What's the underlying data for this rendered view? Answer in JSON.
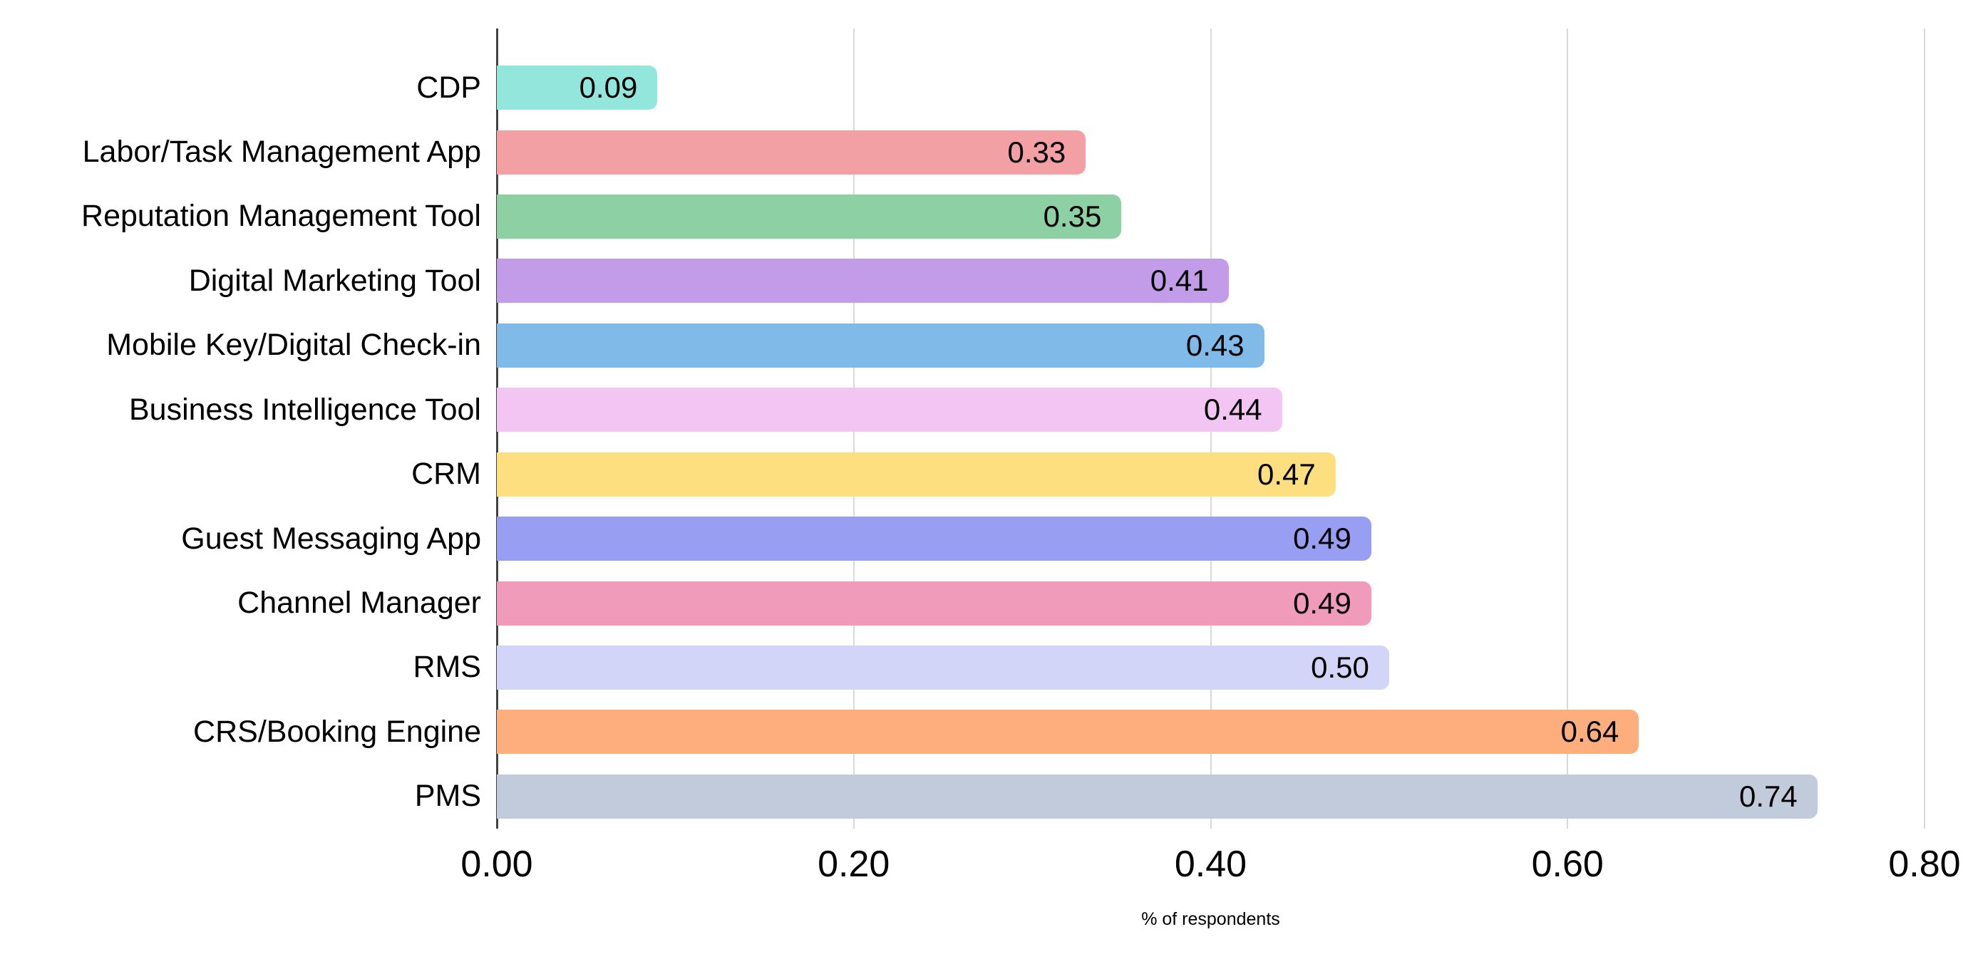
{
  "chart_data": {
    "type": "bar",
    "orientation": "horizontal",
    "title": "",
    "xlabel": "% of respondents",
    "ylabel": "",
    "xlim": [
      0,
      0.8
    ],
    "grid": true,
    "legend": false,
    "x_ticks": [
      {
        "value": 0.0,
        "label": "0.00"
      },
      {
        "value": 0.2,
        "label": "0.20"
      },
      {
        "value": 0.4,
        "label": "0.40"
      },
      {
        "value": 0.6,
        "label": "0.60"
      },
      {
        "value": 0.8,
        "label": "0.80"
      }
    ],
    "bars": [
      {
        "category": "CDP",
        "value": 0.09,
        "label": "0.09",
        "color": "#93E6DC"
      },
      {
        "category": "Labor/Task Management App",
        "value": 0.33,
        "label": "0.33",
        "color": "#F2A0A4"
      },
      {
        "category": "Reputation Management Tool",
        "value": 0.35,
        "label": "0.35",
        "color": "#8CD0A3"
      },
      {
        "category": "Digital Marketing Tool",
        "value": 0.41,
        "label": "0.41",
        "color": "#C29CE8"
      },
      {
        "category": "Mobile Key/Digital Check-in",
        "value": 0.43,
        "label": "0.43",
        "color": "#7FBAE8"
      },
      {
        "category": "Business Intelligence Tool",
        "value": 0.44,
        "label": "0.44",
        "color": "#F3C5F3"
      },
      {
        "category": "CRM",
        "value": 0.47,
        "label": "0.47",
        "color": "#FDDF7F"
      },
      {
        "category": "Guest Messaging App",
        "value": 0.49,
        "label": "0.49",
        "color": "#989EF1"
      },
      {
        "category": "Channel Manager",
        "value": 0.49,
        "label": "0.49",
        "color": "#EF9BB9"
      },
      {
        "category": "RMS",
        "value": 0.5,
        "label": "0.50",
        "color": "#D2D4F8"
      },
      {
        "category": "CRS/Booking Engine",
        "value": 0.64,
        "label": "0.64",
        "color": "#FDAE7C"
      },
      {
        "category": "PMS",
        "value": 0.74,
        "label": "0.74",
        "color": "#C2CBDC"
      }
    ],
    "colors": {
      "grid": "#d9d9d9",
      "axis": "#424242",
      "text": "#000000",
      "background": "#ffffff"
    }
  }
}
